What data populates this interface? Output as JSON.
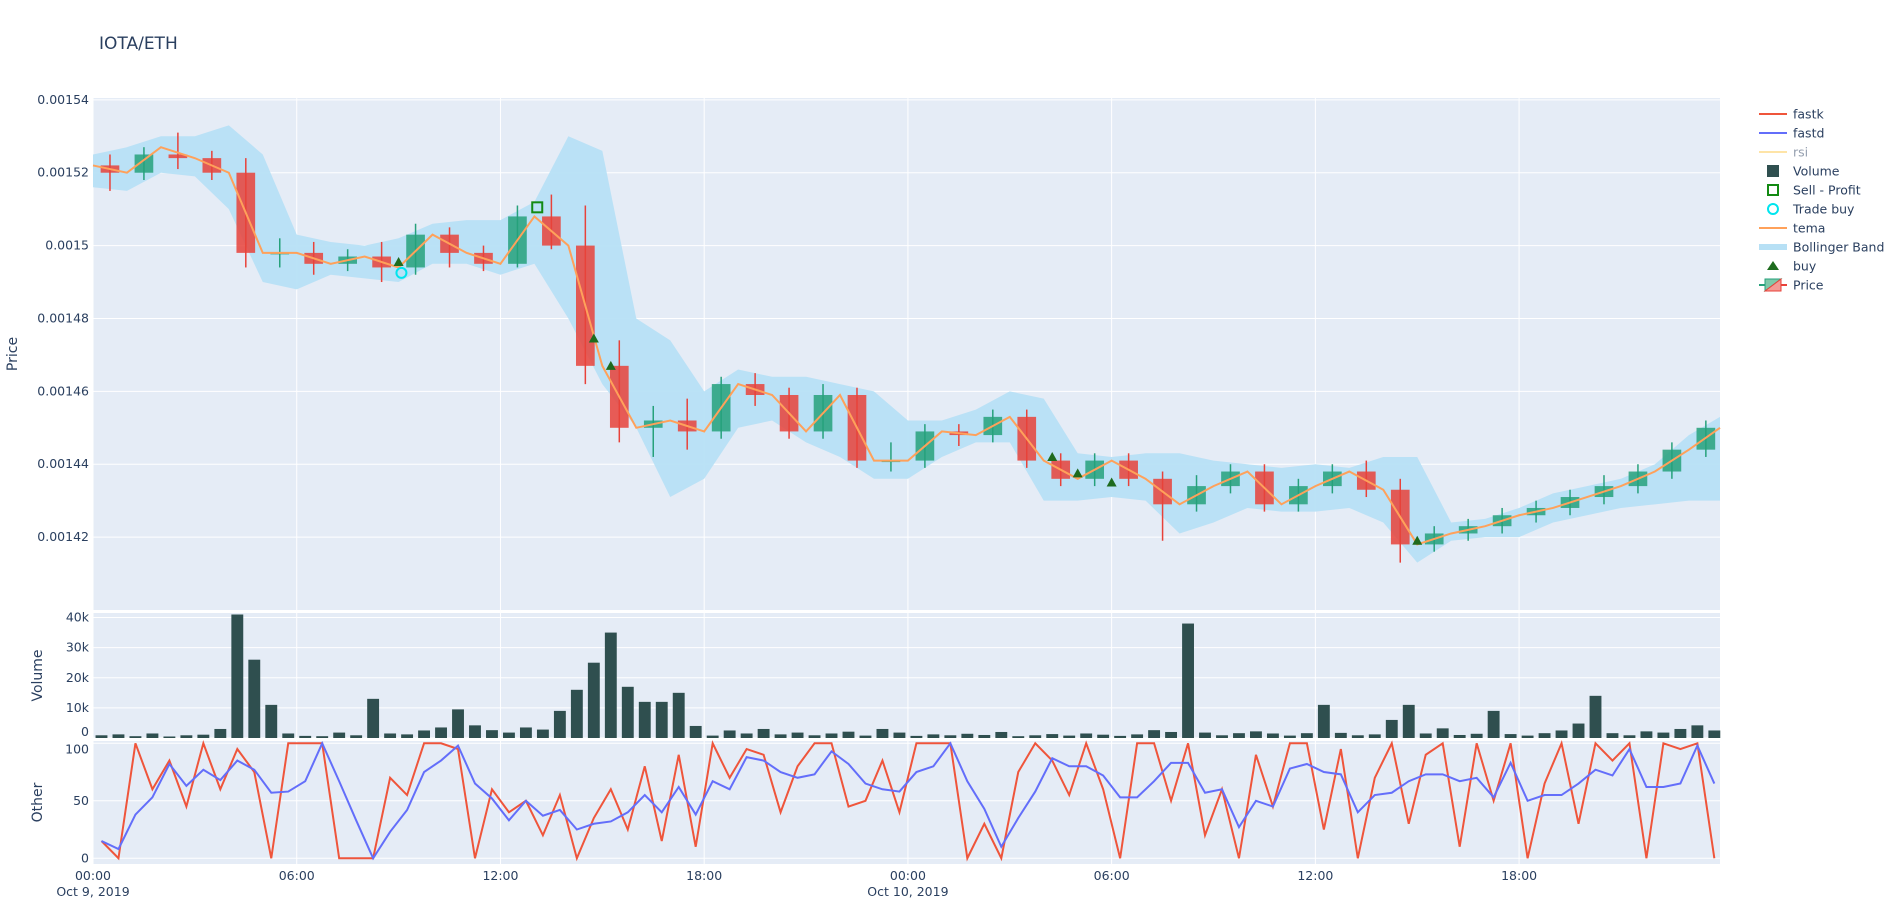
{
  "chart_data": {
    "type": "candlestick",
    "title": "IOTA/ETH",
    "x_start": "2019-10-09T00:00",
    "x_end": "2019-10-10T23:55",
    "x_ticks": [
      {
        "t": "2019-10-09T00:00",
        "label": "00:00",
        "sub": "Oct 9, 2019"
      },
      {
        "t": "2019-10-09T06:00",
        "label": "06:00",
        "sub": ""
      },
      {
        "t": "2019-10-09T12:00",
        "label": "12:00",
        "sub": ""
      },
      {
        "t": "2019-10-09T18:00",
        "label": "18:00",
        "sub": ""
      },
      {
        "t": "2019-10-10T00:00",
        "label": "00:00",
        "sub": "Oct 10, 2019"
      },
      {
        "t": "2019-10-10T06:00",
        "label": "06:00",
        "sub": ""
      },
      {
        "t": "2019-10-10T12:00",
        "label": "12:00",
        "sub": ""
      },
      {
        "t": "2019-10-10T18:00",
        "label": "18:00",
        "sub": ""
      }
    ],
    "price_panel": {
      "ylabel": "Price",
      "ylim": [
        0.0014,
        0.0015405
      ],
      "y_ticks": [
        {
          "v": 0.00142,
          "label": "0.00142"
        },
        {
          "v": 0.00144,
          "label": "0.00144"
        },
        {
          "v": 0.00146,
          "label": "0.00146"
        },
        {
          "v": 0.00148,
          "label": "0.00148"
        },
        {
          "v": 0.0015,
          "label": "0.0015"
        },
        {
          "v": 0.00152,
          "label": "0.00152"
        },
        {
          "v": 0.00154,
          "label": "0.00154"
        }
      ],
      "candles_scale": 1e-06,
      "candles": [
        [
          1522,
          1525,
          1515,
          1520
        ],
        [
          1520,
          1527,
          1518,
          1525
        ],
        [
          1525,
          1531,
          1521,
          1524
        ],
        [
          1524,
          1526,
          1518,
          1520
        ],
        [
          1520,
          1524,
          1494,
          1498
        ],
        [
          1498,
          1502,
          1494,
          1498
        ],
        [
          1498,
          1501,
          1492,
          1495
        ],
        [
          1495,
          1499,
          1493,
          1497
        ],
        [
          1497,
          1501,
          1490,
          1494
        ],
        [
          1494,
          1506,
          1492,
          1503
        ],
        [
          1503,
          1505,
          1494,
          1498
        ],
        [
          1498,
          1500,
          1493,
          1495
        ],
        [
          1495,
          1511,
          1494,
          1508
        ],
        [
          1508,
          1514,
          1499,
          1500
        ],
        [
          1500,
          1511,
          1462,
          1467
        ],
        [
          1467,
          1474,
          1446,
          1450
        ],
        [
          1450,
          1456,
          1442,
          1452
        ],
        [
          1452,
          1458,
          1444,
          1449
        ],
        [
          1449,
          1464,
          1447,
          1462
        ],
        [
          1462,
          1465,
          1456,
          1459
        ],
        [
          1459,
          1461,
          1447,
          1449
        ],
        [
          1449,
          1462,
          1447,
          1459
        ],
        [
          1459,
          1461,
          1439,
          1441
        ],
        [
          1441,
          1446,
          1438,
          1441
        ],
        [
          1441,
          1451,
          1439,
          1449
        ],
        [
          1449,
          1451,
          1445,
          1448
        ],
        [
          1448,
          1455,
          1446,
          1453
        ],
        [
          1453,
          1455,
          1439,
          1441
        ],
        [
          1441,
          1443,
          1434,
          1436
        ],
        [
          1436,
          1443,
          1434,
          1441
        ],
        [
          1441,
          1443,
          1434,
          1436
        ],
        [
          1436,
          1438,
          1419,
          1429
        ],
        [
          1429,
          1437,
          1427,
          1434
        ],
        [
          1434,
          1440,
          1432,
          1438
        ],
        [
          1438,
          1440,
          1427,
          1429
        ],
        [
          1429,
          1436,
          1427,
          1434
        ],
        [
          1434,
          1440,
          1432,
          1438
        ],
        [
          1438,
          1441,
          1431,
          1433
        ],
        [
          1433,
          1436,
          1413,
          1418
        ],
        [
          1418,
          1423,
          1416,
          1421
        ],
        [
          1421,
          1425,
          1419,
          1423
        ],
        [
          1423,
          1428,
          1421,
          1426
        ],
        [
          1426,
          1430,
          1424,
          1428
        ],
        [
          1428,
          1433,
          1426,
          1431
        ],
        [
          1431,
          1437,
          1429,
          1434
        ],
        [
          1434,
          1440,
          1432,
          1438
        ],
        [
          1438,
          1446,
          1436,
          1444
        ],
        [
          1444,
          1452,
          1442,
          1450
        ]
      ],
      "tema": [
        1522,
        1520,
        1527,
        1524,
        1520,
        1498,
        1498,
        1495,
        1497,
        1494,
        1503,
        1498,
        1495,
        1508,
        1500,
        1467,
        1450,
        1452,
        1449,
        1462,
        1459,
        1449,
        1459,
        1441,
        1441,
        1449,
        1448,
        1453,
        1441,
        1436,
        1441,
        1436,
        1429,
        1434,
        1438,
        1429,
        1434,
        1438,
        1433,
        1418,
        1421,
        1423,
        1426,
        1428,
        1431,
        1434,
        1438,
        1444,
        1450
      ],
      "bb_upper": [
        1525,
        1527,
        1530,
        1530,
        1533,
        1525,
        1503,
        1501,
        1500,
        1502,
        1506,
        1507,
        1507,
        1512,
        1530,
        1526,
        1480,
        1474,
        1460,
        1466,
        1464,
        1464,
        1462,
        1460,
        1452,
        1452,
        1455,
        1460,
        1458,
        1443,
        1442,
        1443,
        1443,
        1441,
        1440,
        1439,
        1440,
        1439,
        1442,
        1442,
        1424,
        1425,
        1428,
        1432,
        1434,
        1436,
        1440,
        1448,
        1453
      ],
      "bb_lower": [
        1516,
        1515,
        1520,
        1519,
        1510,
        1490,
        1488,
        1492,
        1491,
        1490,
        1495,
        1495,
        1492,
        1495,
        1480,
        1462,
        1450,
        1431,
        1436,
        1450,
        1452,
        1446,
        1442,
        1436,
        1436,
        1442,
        1446,
        1446,
        1430,
        1430,
        1431,
        1430,
        1421,
        1424,
        1428,
        1427,
        1427,
        1428,
        1424,
        1413,
        1419,
        1420,
        1420,
        1424,
        1426,
        1428,
        1429,
        1430,
        1430
      ],
      "buy_signals": [
        [
          "2019-10-09T09:00",
          1495.5
        ],
        [
          "2019-10-09T14:45",
          1474.5
        ],
        [
          "2019-10-09T15:15",
          1467
        ],
        [
          "2019-10-10T04:15",
          1442
        ],
        [
          "2019-10-10T05:00",
          1437.5
        ],
        [
          "2019-10-10T06:00",
          1435
        ],
        [
          "2019-10-10T15:00",
          1419
        ]
      ],
      "trade_buys": [
        [
          "2019-10-09T09:05",
          1492.5
        ]
      ],
      "sell_profit": [
        [
          "2019-10-09T13:05",
          1510.5
        ]
      ]
    },
    "volume_panel": {
      "ylabel": "Volume",
      "ylim": [
        0,
        41500
      ],
      "y_ticks": [
        {
          "v": 0,
          "label": "0"
        },
        {
          "v": 10000,
          "label": "10k"
        },
        {
          "v": 20000,
          "label": "20k"
        },
        {
          "v": 30000,
          "label": "30k"
        },
        {
          "v": 40000,
          "label": "40k"
        }
      ],
      "interval_minutes": 30,
      "values": [
        900,
        1200,
        600,
        1500,
        500,
        900,
        1100,
        3000,
        41000,
        26000,
        11000,
        1500,
        700,
        600,
        1800,
        900,
        13000,
        1500,
        1200,
        2500,
        3500,
        9500,
        4200,
        2600,
        1800,
        3500,
        2800,
        9000,
        16000,
        25000,
        35000,
        17000,
        12000,
        12000,
        15000,
        4000,
        800,
        2500,
        1500,
        3000,
        1200,
        1800,
        900,
        1500,
        2100,
        800,
        3000,
        1800,
        700,
        1200,
        900,
        1400,
        1000,
        2000,
        600,
        900,
        1300,
        800,
        1500,
        1100,
        700,
        1200,
        2600,
        2000,
        38000,
        1800,
        900,
        1600,
        2200,
        1500,
        800,
        1600,
        11000,
        1700,
        900,
        1200,
        6000,
        11000,
        1500,
        3200,
        1000,
        1400,
        9000,
        1300,
        800,
        1600,
        2500,
        4800,
        14000,
        1600,
        900,
        2200,
        1800,
        3000,
        4200,
        2500
      ]
    },
    "other_panel": {
      "ylabel": "Other",
      "ylim": [
        -5,
        102
      ],
      "y_ticks": [
        {
          "v": 0,
          "label": "0"
        },
        {
          "v": 50,
          "label": "50"
        },
        {
          "v": 100,
          "label": "100"
        }
      ],
      "interval_minutes": 30,
      "series": [
        {
          "name": "fastk",
          "color": "#EF553B",
          "values": [
            15,
            0,
            100,
            60,
            85,
            45,
            100,
            60,
            95,
            75,
            0,
            100,
            100,
            100,
            0,
            0,
            0,
            70,
            55,
            100,
            100,
            95,
            0,
            60,
            40,
            50,
            20,
            55,
            0,
            35,
            60,
            25,
            80,
            15,
            90,
            10,
            100,
            70,
            95,
            90,
            40,
            80,
            100,
            100,
            45,
            50,
            85,
            40,
            100,
            100,
            100,
            0,
            30,
            0,
            75,
            100,
            85,
            55,
            100,
            60,
            0,
            100,
            100,
            50,
            100,
            20,
            60,
            0,
            90,
            45,
            100,
            100,
            25,
            95,
            0,
            70,
            100,
            30,
            90,
            100,
            10,
            100,
            50,
            100,
            0,
            65,
            100,
            30,
            100,
            85,
            100,
            0,
            100,
            95,
            100,
            0
          ]
        },
        {
          "name": "fastd",
          "color": "#636EFA",
          "values": [
            15,
            8,
            38,
            53,
            82,
            63,
            77,
            68,
            85,
            77,
            57,
            58,
            67,
            100,
            67,
            33,
            0,
            23,
            42,
            75,
            85,
            98,
            65,
            52,
            33,
            50,
            37,
            42,
            25,
            30,
            32,
            40,
            55,
            40,
            62,
            38,
            67,
            60,
            88,
            85,
            75,
            70,
            73,
            93,
            82,
            65,
            60,
            58,
            75,
            80,
            100,
            67,
            43,
            10,
            35,
            58,
            87,
            80,
            80,
            72,
            53,
            53,
            67,
            83,
            83,
            57,
            60,
            27,
            50,
            45,
            78,
            82,
            75,
            73,
            40,
            55,
            57,
            67,
            73,
            73,
            67,
            70,
            53,
            83,
            50,
            55,
            55,
            65,
            77,
            72,
            95,
            62,
            62,
            65,
            98,
            65
          ]
        }
      ]
    },
    "colors": {
      "increasing": "#26a17b",
      "decreasing": "#e8423a",
      "volume": "#2f4f4f",
      "tema": "#FFA15A",
      "bollinger": "#b7e0f5",
      "buy": "#1e6b1e",
      "trade_buy": "#00e5ee",
      "sell_profit": "#138a13",
      "plot_bg": "#E5ECF6",
      "grid": "#ffffff"
    },
    "legend": {
      "placement": "right",
      "items": [
        {
          "label": "fastk",
          "kind": "line",
          "color": "#EF553B",
          "hidden": false
        },
        {
          "label": "fastd",
          "kind": "line",
          "color": "#636EFA",
          "hidden": false
        },
        {
          "label": "rsi",
          "kind": "line",
          "color": "#FECB52",
          "hidden": true
        },
        {
          "label": "Volume",
          "kind": "square",
          "color": "#2f4f4f",
          "hidden": false
        },
        {
          "label": "Sell - Profit",
          "kind": "open-square",
          "color": "#138a13",
          "hidden": false
        },
        {
          "label": "Trade buy",
          "kind": "open-circle",
          "color": "#00e5ee",
          "hidden": false
        },
        {
          "label": "tema",
          "kind": "line",
          "color": "#FFA15A",
          "hidden": false
        },
        {
          "label": "Bollinger Band",
          "kind": "band",
          "color": "#b7e0f5",
          "hidden": false
        },
        {
          "label": "buy",
          "kind": "triangle",
          "color": "#1e6b1e",
          "hidden": false
        },
        {
          "label": "Price",
          "kind": "candle",
          "color": "#e8423a",
          "hidden": false
        }
      ]
    }
  }
}
